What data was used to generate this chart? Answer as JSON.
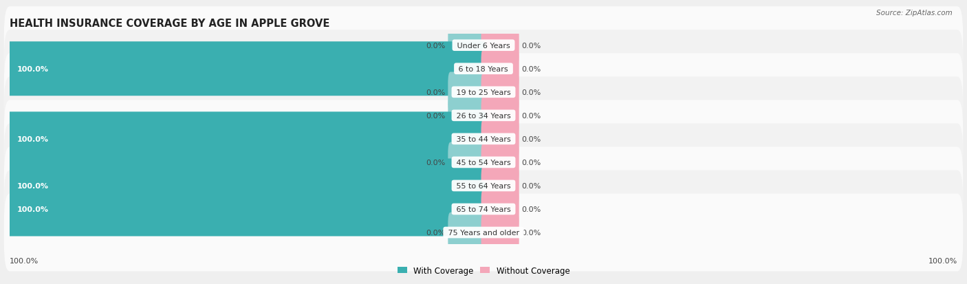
{
  "title": "HEALTH INSURANCE COVERAGE BY AGE IN APPLE GROVE",
  "source": "Source: ZipAtlas.com",
  "categories": [
    "Under 6 Years",
    "6 to 18 Years",
    "19 to 25 Years",
    "26 to 34 Years",
    "35 to 44 Years",
    "45 to 54 Years",
    "55 to 64 Years",
    "65 to 74 Years",
    "75 Years and older"
  ],
  "with_coverage": [
    0.0,
    100.0,
    0.0,
    0.0,
    100.0,
    0.0,
    100.0,
    100.0,
    0.0
  ],
  "without_coverage": [
    0.0,
    0.0,
    0.0,
    0.0,
    0.0,
    0.0,
    0.0,
    0.0,
    0.0
  ],
  "coverage_color": "#3AAFB0",
  "no_coverage_color": "#F4A7B9",
  "coverage_color_light": "#8DCFCF",
  "no_coverage_color_light": "#F4A7B9",
  "bg_color": "#EFEFEF",
  "row_color_odd": "#FAFAFA",
  "row_color_even": "#F2F2F2",
  "xlim_left": -100,
  "xlim_right": 100,
  "stub_size": 7,
  "bar_height": 0.72,
  "title_fontsize": 10.5,
  "label_fontsize": 8,
  "category_fontsize": 8,
  "legend_fontsize": 8.5,
  "source_fontsize": 7.5
}
